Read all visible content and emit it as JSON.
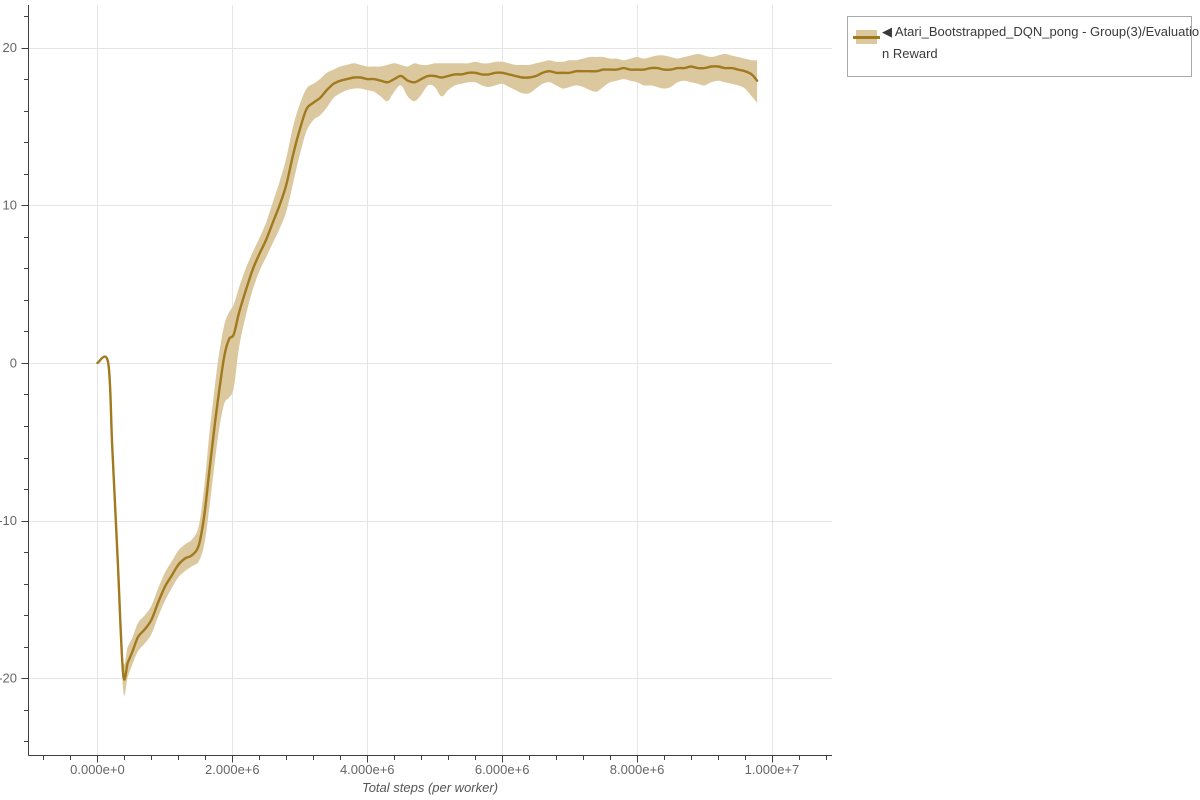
{
  "legend": {
    "entries": [
      {
        "lines": [
          "◀ Atari_Bootstrapped_DQN_pong - Group(3)/Evaluatio",
          "n Reward"
        ]
      }
    ]
  },
  "chart_data": {
    "type": "line",
    "title": "",
    "xlabel": "Total steps (per worker)",
    "ylabel": "",
    "grid": true,
    "legend_position": "top-right-outside",
    "x_axis": {
      "tick_values": [
        0,
        2000000,
        4000000,
        6000000,
        8000000,
        10000000
      ],
      "tick_labels": [
        "0.000e+0",
        "2.000e+6",
        "4.000e+6",
        "6.000e+6",
        "8.000e+6",
        "1.000e+7"
      ],
      "minor_tick_step": 400000,
      "range": [
        -1022000,
        10890000
      ]
    },
    "y_axis": {
      "tick_values": [
        -20,
        -10,
        0,
        10,
        20
      ],
      "tick_labels": [
        "-20",
        "-10",
        "0",
        "10",
        "20"
      ],
      "minor_tick_step": 2,
      "range": [
        -24.9,
        22.7
      ]
    },
    "colors": {
      "line": "#a1791e",
      "band": "#dcc89e",
      "grid": "#e5e5e5",
      "axis": "#3f3f3f",
      "tick_label": "#666666",
      "axis_label": "#555555",
      "legend_border": "#a9a9a9",
      "legend_text": "#3a3a3a"
    },
    "series": [
      {
        "name": "Atari_Bootstrapped_DQN_pong - Group(3)/Evaluation Reward",
        "points_format": [
          "x_millions_of_steps",
          "mean",
          "lower",
          "upper"
        ],
        "points": [
          [
            0.0,
            0.0,
            0.0,
            0.0
          ],
          [
            0.16,
            0.0,
            0.0,
            0.0
          ],
          [
            0.22,
            -5.4,
            -5.7,
            -5.1
          ],
          [
            0.3,
            -12.5,
            -12.9,
            -12.1
          ],
          [
            0.38,
            -19.7,
            -20.7,
            -18.8
          ],
          [
            0.45,
            -19.0,
            -19.9,
            -18.0
          ],
          [
            0.52,
            -18.3,
            -19.1,
            -17.4
          ],
          [
            0.6,
            -17.4,
            -18.3,
            -16.5
          ],
          [
            0.7,
            -16.9,
            -17.8,
            -16.0
          ],
          [
            0.8,
            -16.3,
            -17.2,
            -15.4
          ],
          [
            0.9,
            -15.2,
            -16.1,
            -14.3
          ],
          [
            1.0,
            -14.2,
            -15.1,
            -13.3
          ],
          [
            1.1,
            -13.5,
            -14.3,
            -12.6
          ],
          [
            1.2,
            -12.8,
            -13.6,
            -11.9
          ],
          [
            1.3,
            -12.4,
            -13.2,
            -11.5
          ],
          [
            1.4,
            -12.2,
            -12.9,
            -11.2
          ],
          [
            1.5,
            -11.6,
            -12.6,
            -10.4
          ],
          [
            1.58,
            -9.8,
            -11.6,
            -8.0
          ],
          [
            1.65,
            -7.2,
            -9.5,
            -4.9
          ],
          [
            1.72,
            -4.6,
            -7.0,
            -2.2
          ],
          [
            1.8,
            -1.9,
            -4.3,
            0.5
          ],
          [
            1.88,
            0.4,
            -2.6,
            2.4
          ],
          [
            1.95,
            1.5,
            -2.2,
            3.2
          ],
          [
            2.02,
            1.8,
            -1.6,
            3.7
          ],
          [
            2.1,
            3.2,
            1.0,
            4.8
          ],
          [
            2.2,
            4.6,
            3.0,
            6.0
          ],
          [
            2.3,
            5.9,
            4.6,
            7.0
          ],
          [
            2.4,
            6.9,
            5.8,
            7.9
          ],
          [
            2.5,
            7.8,
            6.7,
            8.9
          ],
          [
            2.6,
            8.9,
            7.6,
            10.2
          ],
          [
            2.7,
            10.0,
            8.5,
            11.5
          ],
          [
            2.8,
            11.3,
            9.6,
            13.0
          ],
          [
            2.9,
            13.2,
            11.4,
            15.0
          ],
          [
            3.0,
            14.8,
            13.2,
            16.4
          ],
          [
            3.1,
            16.1,
            14.7,
            17.4
          ],
          [
            3.2,
            16.5,
            15.4,
            17.7
          ],
          [
            3.3,
            16.8,
            15.7,
            18.0
          ],
          [
            3.4,
            17.3,
            16.2,
            18.4
          ],
          [
            3.5,
            17.7,
            16.8,
            18.6
          ],
          [
            3.6,
            17.9,
            17.1,
            18.8
          ],
          [
            3.7,
            18.0,
            17.3,
            18.9
          ],
          [
            3.8,
            18.1,
            17.4,
            19.0
          ],
          [
            3.9,
            18.1,
            17.4,
            18.9
          ],
          [
            4.0,
            18.0,
            17.3,
            18.8
          ],
          [
            4.1,
            18.0,
            17.2,
            18.8
          ],
          [
            4.2,
            17.9,
            16.9,
            18.8
          ],
          [
            4.3,
            17.8,
            16.6,
            18.9
          ],
          [
            4.4,
            18.0,
            17.2,
            19.0
          ],
          [
            4.5,
            18.2,
            17.6,
            18.9
          ],
          [
            4.6,
            17.9,
            16.9,
            18.8
          ],
          [
            4.7,
            17.8,
            16.6,
            19.0
          ],
          [
            4.8,
            18.0,
            17.0,
            18.9
          ],
          [
            4.9,
            18.2,
            17.6,
            18.9
          ],
          [
            5.0,
            18.2,
            17.5,
            19.0
          ],
          [
            5.1,
            18.1,
            16.9,
            19.0
          ],
          [
            5.2,
            18.2,
            17.3,
            19.0
          ],
          [
            5.3,
            18.3,
            17.6,
            19.0
          ],
          [
            5.4,
            18.3,
            17.7,
            19.0
          ],
          [
            5.5,
            18.4,
            17.8,
            19.0
          ],
          [
            5.6,
            18.4,
            17.8,
            19.1
          ],
          [
            5.7,
            18.3,
            17.6,
            19.0
          ],
          [
            5.8,
            18.3,
            17.5,
            19.0
          ],
          [
            5.9,
            18.4,
            17.6,
            19.1
          ],
          [
            6.0,
            18.4,
            17.7,
            19.1
          ],
          [
            6.1,
            18.3,
            17.5,
            19.0
          ],
          [
            6.2,
            18.2,
            17.3,
            18.9
          ],
          [
            6.3,
            18.1,
            17.1,
            18.9
          ],
          [
            6.4,
            18.1,
            17.1,
            18.9
          ],
          [
            6.5,
            18.2,
            17.4,
            19.0
          ],
          [
            6.6,
            18.4,
            17.7,
            19.1
          ],
          [
            6.7,
            18.5,
            17.8,
            19.2
          ],
          [
            6.8,
            18.4,
            17.6,
            19.1
          ],
          [
            6.9,
            18.4,
            17.4,
            19.1
          ],
          [
            7.0,
            18.4,
            17.5,
            19.2
          ],
          [
            7.1,
            18.5,
            17.6,
            19.2
          ],
          [
            7.2,
            18.5,
            17.5,
            19.3
          ],
          [
            7.3,
            18.5,
            17.3,
            19.4
          ],
          [
            7.4,
            18.5,
            17.2,
            19.4
          ],
          [
            7.5,
            18.6,
            17.5,
            19.4
          ],
          [
            7.6,
            18.6,
            17.8,
            19.3
          ],
          [
            7.7,
            18.6,
            17.9,
            19.3
          ],
          [
            7.8,
            18.7,
            18.0,
            19.2
          ],
          [
            7.9,
            18.6,
            17.9,
            19.3
          ],
          [
            8.0,
            18.6,
            17.8,
            19.4
          ],
          [
            8.1,
            18.6,
            17.6,
            19.3
          ],
          [
            8.2,
            18.7,
            17.6,
            19.4
          ],
          [
            8.3,
            18.7,
            17.5,
            19.5
          ],
          [
            8.4,
            18.6,
            17.4,
            19.5
          ],
          [
            8.5,
            18.6,
            17.5,
            19.4
          ],
          [
            8.6,
            18.7,
            17.8,
            19.3
          ],
          [
            8.7,
            18.7,
            17.9,
            19.4
          ],
          [
            8.8,
            18.8,
            17.8,
            19.5
          ],
          [
            8.9,
            18.7,
            17.7,
            19.6
          ],
          [
            9.0,
            18.7,
            17.6,
            19.5
          ],
          [
            9.1,
            18.8,
            17.8,
            19.4
          ],
          [
            9.2,
            18.8,
            17.9,
            19.5
          ],
          [
            9.3,
            18.7,
            17.8,
            19.6
          ],
          [
            9.4,
            18.7,
            17.7,
            19.5
          ],
          [
            9.5,
            18.6,
            17.6,
            19.4
          ],
          [
            9.6,
            18.5,
            17.4,
            19.3
          ],
          [
            9.7,
            18.3,
            16.9,
            19.2
          ],
          [
            9.78,
            17.9,
            16.5,
            19.2
          ]
        ]
      }
    ]
  }
}
